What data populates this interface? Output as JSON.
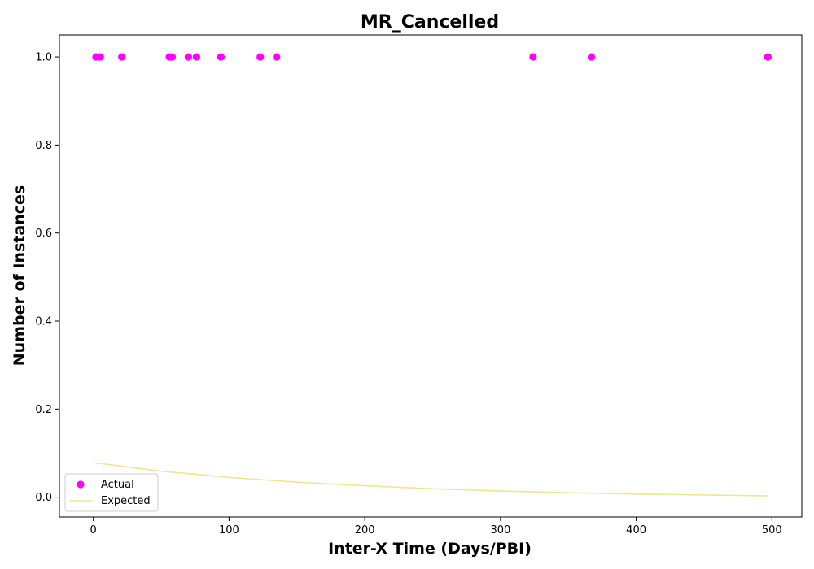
{
  "chart_data": {
    "type": "scatter",
    "title": "MR_Cancelled",
    "xlabel": "Inter-X Time (Days/PBI)",
    "ylabel": "Number of Instances",
    "xlim": [
      -25,
      522
    ],
    "ylim": [
      -0.045,
      1.05
    ],
    "xticks": [
      0,
      100,
      200,
      300,
      400,
      500
    ],
    "yticks": [
      0.0,
      0.2,
      0.4,
      0.6,
      0.8,
      1.0
    ],
    "xtick_labels": [
      "0",
      "100",
      "200",
      "300",
      "400",
      "500"
    ],
    "ytick_labels": [
      "0.0",
      "0.2",
      "0.4",
      "0.6",
      "0.8",
      "1.0"
    ],
    "grid": false,
    "legend_position": "lower-left",
    "series": [
      {
        "name": "Actual",
        "kind": "scatter",
        "color": "#ff00ff",
        "points": [
          {
            "x": 2,
            "y": 1.0
          },
          {
            "x": 5,
            "y": 1.0
          },
          {
            "x": 21,
            "y": 1.0
          },
          {
            "x": 56,
            "y": 1.0
          },
          {
            "x": 58,
            "y": 1.0
          },
          {
            "x": 70,
            "y": 1.0
          },
          {
            "x": 76,
            "y": 1.0
          },
          {
            "x": 94,
            "y": 1.0
          },
          {
            "x": 123,
            "y": 1.0
          },
          {
            "x": 135,
            "y": 1.0
          },
          {
            "x": 324,
            "y": 1.0
          },
          {
            "x": 367,
            "y": 1.0
          },
          {
            "x": 497,
            "y": 1.0
          }
        ]
      },
      {
        "name": "Expected",
        "kind": "line",
        "color": "#f0e68c",
        "points": [
          {
            "x": 1,
            "y": 0.078
          },
          {
            "x": 50,
            "y": 0.059
          },
          {
            "x": 100,
            "y": 0.045
          },
          {
            "x": 150,
            "y": 0.034
          },
          {
            "x": 200,
            "y": 0.026
          },
          {
            "x": 250,
            "y": 0.019
          },
          {
            "x": 300,
            "y": 0.014
          },
          {
            "x": 350,
            "y": 0.01
          },
          {
            "x": 400,
            "y": 0.007
          },
          {
            "x": 450,
            "y": 0.005
          },
          {
            "x": 497,
            "y": 0.003
          }
        ]
      }
    ]
  }
}
